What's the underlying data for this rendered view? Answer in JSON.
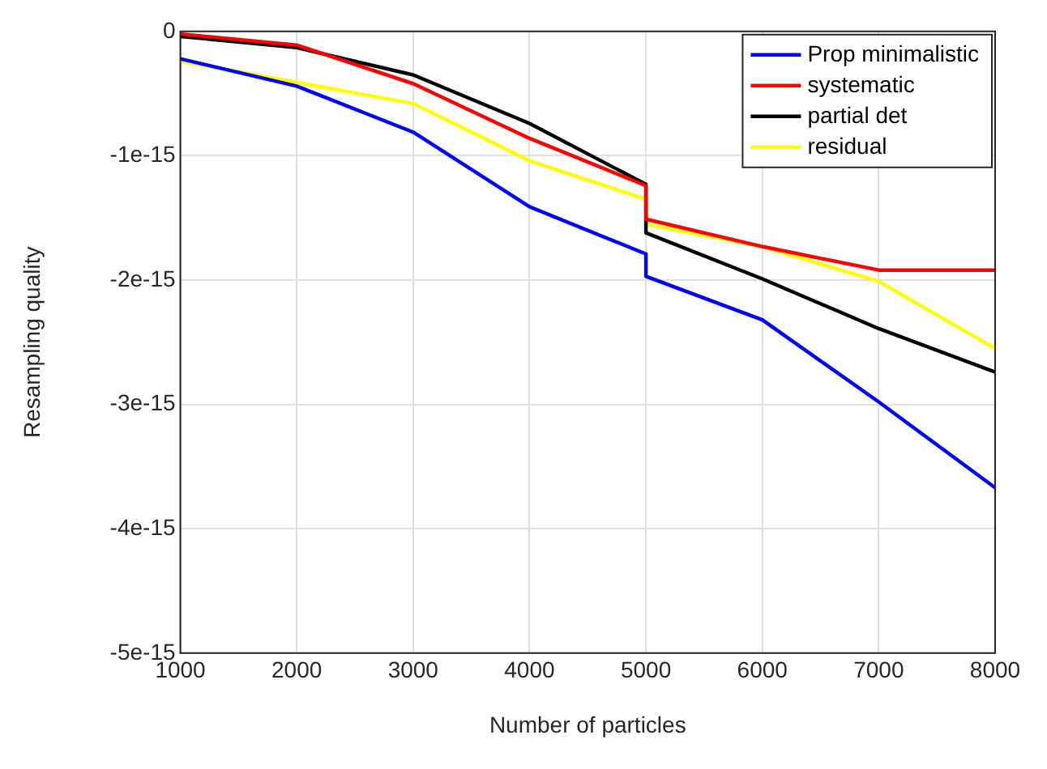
{
  "chart_data": {
    "type": "line",
    "xlabel": "Number of particles",
    "ylabel": "Resampling quality",
    "xlim": [
      1000,
      8000
    ],
    "xticks": [
      1000,
      2000,
      3000,
      4000,
      5000,
      6000,
      7000,
      8000
    ],
    "ylim": [
      -5e-15,
      0
    ],
    "yticks": [
      {
        "value": -5e-15,
        "label": "-5e-15"
      },
      {
        "value": -4e-15,
        "label": "-4e-15"
      },
      {
        "value": -3e-15,
        "label": "-3e-15"
      },
      {
        "value": -2e-15,
        "label": "-2e-15"
      },
      {
        "value": -1e-15,
        "label": "-1e-15"
      },
      0
    ],
    "grid": true,
    "legend": "top right",
    "marker": "none",
    "line_style": "solid",
    "series": [
      {
        "name": "Prop minimalistic",
        "color": "#0000ff",
        "x": [
          1000,
          2000,
          3000,
          4000,
          5000,
          5000,
          6000,
          7000,
          8000
        ],
        "values": [
          -2.2e-16,
          -4.4e-16,
          -8.1e-16,
          -1.41e-15,
          -1.79e-15,
          -1.97e-15,
          -2.32e-15,
          -2.98e-15,
          -3.67e-15
        ]
      },
      {
        "name": "systematic",
        "color": "#ff0000",
        "x": [
          1000,
          2000,
          3000,
          4000,
          5000,
          5000,
          6000,
          7000,
          8000
        ],
        "values": [
          -2e-17,
          -1.1e-16,
          -4.2e-16,
          -8.6e-16,
          -1.24e-15,
          -1.51e-15,
          -1.73e-15,
          -1.92e-15,
          -1.92e-15
        ]
      },
      {
        "name": "partial det",
        "color": "#000000",
        "x": [
          1000,
          2000,
          3000,
          4000,
          5000,
          5000,
          6000,
          7000,
          8000
        ],
        "values": [
          -4e-17,
          -1.3e-16,
          -3.5e-16,
          -7.4e-16,
          -1.23e-15,
          -1.62e-15,
          -1.99e-15,
          -2.39e-15,
          -2.74e-15
        ]
      },
      {
        "name": "residual",
        "color": "#ffff00",
        "x": [
          1000,
          2000,
          3000,
          4000,
          5000,
          5000,
          6000,
          7000,
          8000
        ],
        "values": [
          -2.4e-16,
          -4.1e-16,
          -5.8e-16,
          -1.04e-15,
          -1.35e-15,
          -1.55e-15,
          -1.73e-15,
          -2.01e-15,
          -2.55e-15
        ]
      }
    ]
  }
}
